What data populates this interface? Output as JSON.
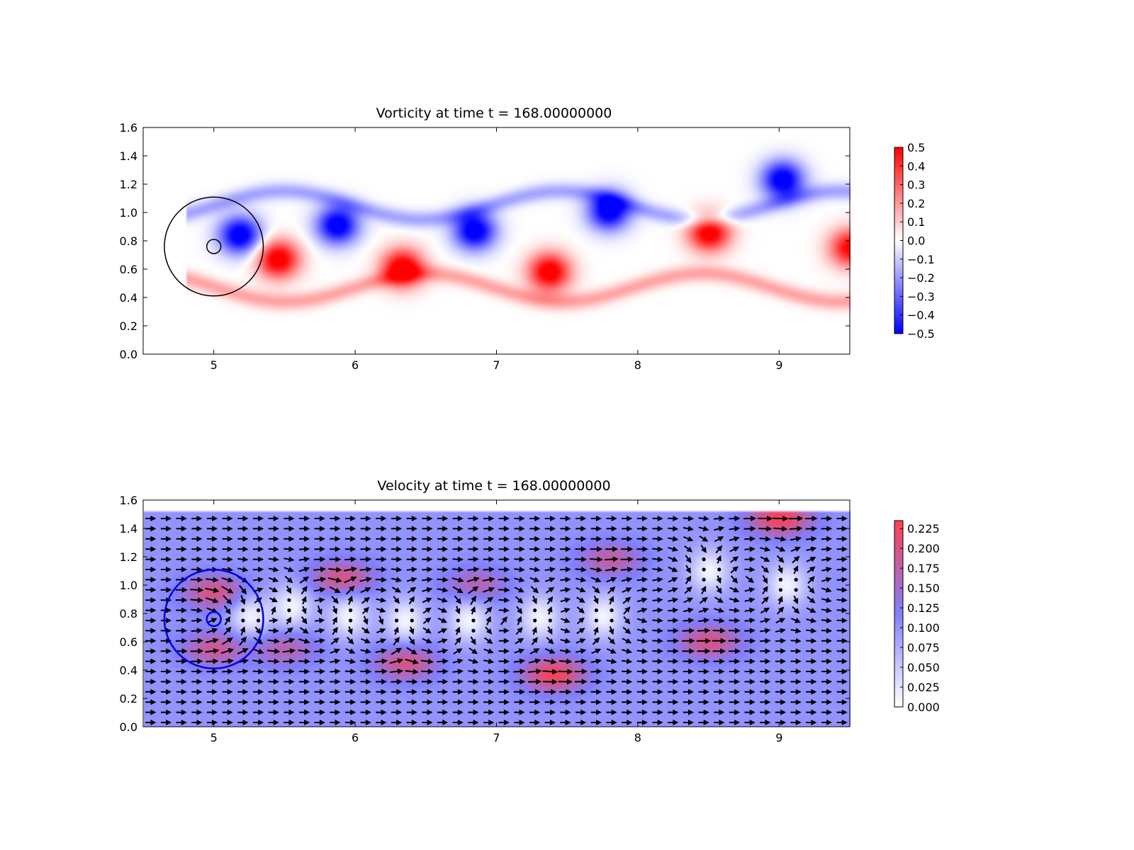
{
  "chart_data": [
    {
      "type": "heatmap",
      "title": "Vorticity at time t =   168.00000000",
      "xlabel": "",
      "ylabel": "",
      "xlim": [
        4.5,
        9.5
      ],
      "ylim": [
        0.0,
        1.6
      ],
      "x_ticks": [
        "5",
        "6",
        "7",
        "8",
        "9"
      ],
      "y_ticks": [
        "0.0",
        "0.2",
        "0.4",
        "0.6",
        "0.8",
        "1.0",
        "1.2",
        "1.4",
        "1.6"
      ],
      "colorbar": {
        "range": [
          -0.5,
          0.5
        ],
        "ticks": [
          "0.5",
          "0.4",
          "0.3",
          "0.2",
          "0.1",
          "0.0",
          "−0.1",
          "−0.2",
          "−0.3",
          "−0.4",
          "−0.5"
        ],
        "colors": {
          "low": "#0000ff",
          "mid": "#ffffff",
          "high": "#ff0000"
        }
      },
      "field_extent": {
        "x": [
          4.5,
          9.5
        ],
        "y": [
          0.0,
          1.52
        ]
      },
      "vortices": [
        {
          "x": 5.18,
          "y": 0.84,
          "w": -0.5
        },
        {
          "x": 5.45,
          "y": 0.67,
          "w": 0.5
        },
        {
          "x": 5.87,
          "y": 0.91,
          "w": -0.5
        },
        {
          "x": 6.33,
          "y": 0.61,
          "w": 0.5
        },
        {
          "x": 6.84,
          "y": 0.87,
          "w": -0.5
        },
        {
          "x": 7.37,
          "y": 0.58,
          "w": 0.5
        },
        {
          "x": 7.79,
          "y": 1.01,
          "w": -0.5
        },
        {
          "x": 8.5,
          "y": 0.86,
          "w": 0.5
        },
        {
          "x": 9.02,
          "y": 1.23,
          "w": -0.5
        },
        {
          "x": 9.5,
          "y": 0.75,
          "w": 0.45
        }
      ],
      "cylinder": {
        "x": 5.0,
        "y": 0.76,
        "r_outer": 0.35,
        "r_inner": 0.05,
        "color": "#000000"
      }
    },
    {
      "type": "heatmap",
      "title": "Velocity at time t =   168.00000000",
      "xlabel": "",
      "ylabel": "",
      "xlim": [
        4.5,
        9.5
      ],
      "ylim": [
        0.0,
        1.6
      ],
      "x_ticks": [
        "5",
        "6",
        "7",
        "8",
        "9"
      ],
      "y_ticks": [
        "0.0",
        "0.2",
        "0.4",
        "0.6",
        "0.8",
        "1.0",
        "1.2",
        "1.4",
        "1.6"
      ],
      "colorbar": {
        "range": [
          0.0,
          0.235
        ],
        "ticks": [
          "0.225",
          "0.200",
          "0.175",
          "0.150",
          "0.125",
          "0.100",
          "0.075",
          "0.050",
          "0.025",
          "0.000"
        ],
        "tick_values": [
          0.225,
          0.2,
          0.175,
          0.15,
          0.125,
          0.1,
          0.075,
          0.05,
          0.025,
          0.0
        ],
        "colors": {
          "low": "#ffffff",
          "mid": "#8080ff",
          "high": "#ff4050"
        }
      },
      "field_extent": {
        "x": [
          4.5,
          9.5
        ],
        "y": [
          0.0,
          1.52
        ]
      },
      "base_speed": 0.1,
      "fast_spots": [
        {
          "x": 5.0,
          "y": 0.95,
          "s": 0.2
        },
        {
          "x": 5.0,
          "y": 0.55,
          "s": 0.19
        },
        {
          "x": 5.5,
          "y": 0.55,
          "s": 0.17
        },
        {
          "x": 5.9,
          "y": 1.05,
          "s": 0.2
        },
        {
          "x": 6.35,
          "y": 0.45,
          "s": 0.2
        },
        {
          "x": 6.85,
          "y": 1.0,
          "s": 0.17
        },
        {
          "x": 7.4,
          "y": 0.37,
          "s": 0.23
        },
        {
          "x": 7.8,
          "y": 1.18,
          "s": 0.18
        },
        {
          "x": 8.5,
          "y": 0.6,
          "s": 0.2
        },
        {
          "x": 9.0,
          "y": 1.47,
          "s": 0.23
        }
      ],
      "slow_spots": [
        {
          "x": 5.25,
          "y": 0.78
        },
        {
          "x": 5.55,
          "y": 0.85
        },
        {
          "x": 5.95,
          "y": 0.78
        },
        {
          "x": 6.35,
          "y": 0.75
        },
        {
          "x": 6.8,
          "y": 0.75
        },
        {
          "x": 7.3,
          "y": 0.77
        },
        {
          "x": 7.75,
          "y": 0.78
        },
        {
          "x": 8.5,
          "y": 1.1
        },
        {
          "x": 9.05,
          "y": 1.0
        }
      ],
      "cylinder": {
        "x": 5.0,
        "y": 0.76,
        "r_outer": 0.35,
        "r_inner": 0.05,
        "color": "#0000dd"
      }
    }
  ]
}
